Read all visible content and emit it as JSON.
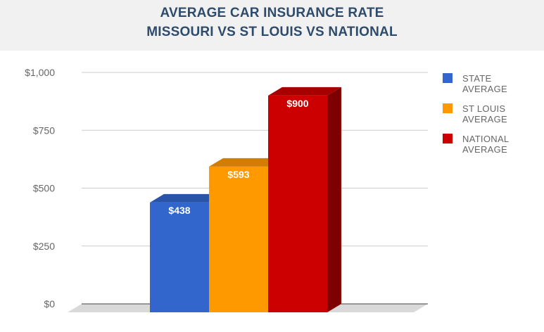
{
  "title_lines": [
    "AVERAGE CAR INSURANCE RATE",
    "MISSOURI VS ST LOUIS VS NATIONAL"
  ],
  "chart_data": {
    "type": "bar",
    "title": "AVERAGE CAR INSURANCE RATE MISSOURI VS ST LOUIS VS NATIONAL",
    "xlabel": "",
    "ylabel": "",
    "ylim": [
      0,
      1000
    ],
    "yticks": [
      0,
      250,
      500,
      750,
      1000
    ],
    "ytick_labels": [
      "$0",
      "$250",
      "$500",
      "$750",
      "$1,000"
    ],
    "grid": true,
    "legend_position": "right",
    "style": "3d",
    "series": [
      {
        "name": "STATE AVERAGE",
        "legend_lines": [
          "STATE",
          "AVERAGE"
        ],
        "value": 438,
        "label": "$438",
        "color": "#3366cc"
      },
      {
        "name": "ST LOUIS AVERAGE",
        "legend_lines": [
          "ST LOUIS",
          "AVERAGE"
        ],
        "value": 593,
        "label": "$593",
        "color": "#ff9900"
      },
      {
        "name": "NATIONAL AVERAGE",
        "legend_lines": [
          "NATIONAL",
          "AVERAGE"
        ],
        "value": 900,
        "label": "$900",
        "color": "#cc0000"
      }
    ]
  }
}
